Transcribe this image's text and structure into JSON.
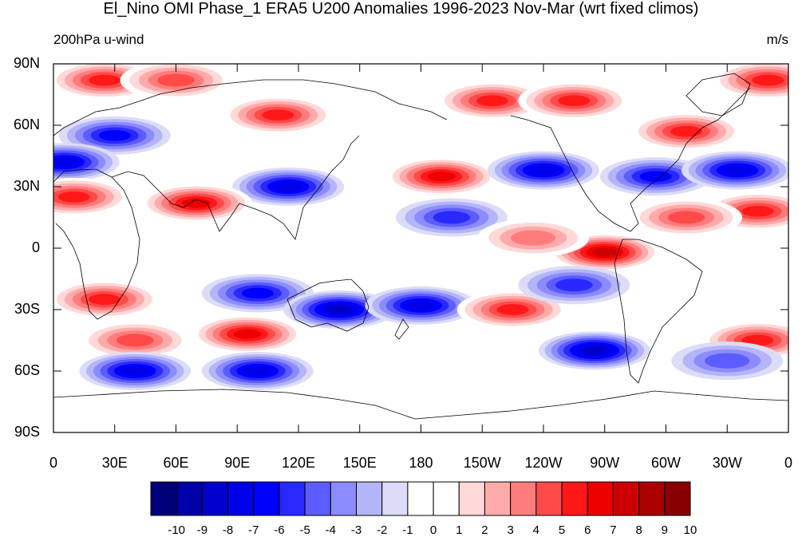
{
  "title": "El_Nino OMI Phase_1 ERA5 U200 Anomalies 1996-2023 Nov-Mar (wrt fixed climos)",
  "subtitle_left": "200hPa u-wind",
  "subtitle_right": "m/s",
  "lat_labels": [
    "90N",
    "60N",
    "30N",
    "0",
    "30S",
    "60S",
    "90S"
  ],
  "lon_labels": [
    "0",
    "30E",
    "60E",
    "90E",
    "120E",
    "150E",
    "180",
    "150W",
    "120W",
    "90W",
    "60W",
    "30W",
    "0"
  ],
  "colorbar": {
    "labels": [
      "-10",
      "-9",
      "-8",
      "-7",
      "-6",
      "-5",
      "-4",
      "-3",
      "-2",
      "-1",
      "0",
      "1",
      "2",
      "3",
      "4",
      "5",
      "6",
      "7",
      "8",
      "9",
      "10"
    ],
    "colors": [
      "#00007a",
      "#0000a8",
      "#0000cc",
      "#0000e8",
      "#0000ff",
      "#2828ff",
      "#5c5cff",
      "#8c8cff",
      "#b4b4f8",
      "#dcdcf8",
      "#ffffff",
      "#ffffff",
      "#ffd8d8",
      "#ffaaaa",
      "#ff7c7c",
      "#ff4a4a",
      "#ff1818",
      "#ee0000",
      "#cc0000",
      "#aa0000",
      "#880000"
    ]
  },
  "map": {
    "projection": "cylindrical-equidistant",
    "lon_range": [
      0,
      360
    ],
    "lat_range": [
      -90,
      90
    ],
    "ocean_color": "#ffffff",
    "anomaly_blobs": [
      {
        "lon": 25,
        "lat": 82,
        "level": 6
      },
      {
        "lon": 60,
        "lat": 82,
        "level": 5
      },
      {
        "lon": 110,
        "lat": 65,
        "level": 6
      },
      {
        "lon": 215,
        "lat": 72,
        "level": 6
      },
      {
        "lon": 255,
        "lat": 72,
        "level": 6
      },
      {
        "lon": 310,
        "lat": 57,
        "level": 6
      },
      {
        "lon": 350,
        "lat": 82,
        "level": 6
      },
      {
        "lon": 30,
        "lat": 55,
        "level": -6
      },
      {
        "lon": 5,
        "lat": 42,
        "level": -7
      },
      {
        "lon": 115,
        "lat": 30,
        "level": -7
      },
      {
        "lon": 70,
        "lat": 22,
        "level": 7
      },
      {
        "lon": 10,
        "lat": 25,
        "level": 6
      },
      {
        "lon": 190,
        "lat": 35,
        "level": 7
      },
      {
        "lon": 240,
        "lat": 38,
        "level": -7
      },
      {
        "lon": 295,
        "lat": 35,
        "level": -6
      },
      {
        "lon": 335,
        "lat": 38,
        "level": -7
      },
      {
        "lon": 345,
        "lat": 18,
        "level": 6
      },
      {
        "lon": 310,
        "lat": 15,
        "level": 5
      },
      {
        "lon": 195,
        "lat": 15,
        "level": -5
      },
      {
        "lon": 270,
        "lat": -2,
        "level": 8
      },
      {
        "lon": 235,
        "lat": 5,
        "level": 4
      },
      {
        "lon": 100,
        "lat": -22,
        "level": -6
      },
      {
        "lon": 25,
        "lat": -25,
        "level": 6
      },
      {
        "lon": 140,
        "lat": -30,
        "level": -8
      },
      {
        "lon": 180,
        "lat": -28,
        "level": -7
      },
      {
        "lon": 225,
        "lat": -30,
        "level": 6
      },
      {
        "lon": 255,
        "lat": -18,
        "level": -5
      },
      {
        "lon": 95,
        "lat": -42,
        "level": 7
      },
      {
        "lon": 40,
        "lat": -45,
        "level": 5
      },
      {
        "lon": 345,
        "lat": -45,
        "level": 6
      },
      {
        "lon": 40,
        "lat": -60,
        "level": -7
      },
      {
        "lon": 100,
        "lat": -60,
        "level": -7
      },
      {
        "lon": 265,
        "lat": -50,
        "level": -8
      },
      {
        "lon": 330,
        "lat": -55,
        "level": -4
      }
    ]
  }
}
